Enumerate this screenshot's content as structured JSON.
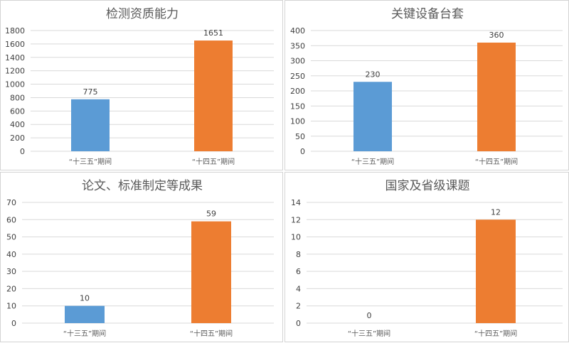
{
  "chart_data": [
    {
      "type": "bar",
      "title": "检测资质能力",
      "categories": [
        "“十三五”期间",
        "“十四五”期间"
      ],
      "values": [
        775,
        1651
      ],
      "ylim": [
        0,
        1800
      ],
      "yticks": [
        0,
        200,
        400,
        600,
        800,
        1000,
        1200,
        1400,
        1600,
        1800
      ],
      "colors": [
        "#5b9bd5",
        "#ed7d31"
      ],
      "grid": true
    },
    {
      "type": "bar",
      "title": "关键设备台套",
      "categories": [
        "“十三五”期间",
        "“十四五”期间"
      ],
      "values": [
        230,
        360
      ],
      "ylim": [
        0,
        400
      ],
      "yticks": [
        0,
        50,
        100,
        150,
        200,
        250,
        300,
        350,
        400
      ],
      "colors": [
        "#5b9bd5",
        "#ed7d31"
      ],
      "grid": true
    },
    {
      "type": "bar",
      "title": "论文、标准制定等成果",
      "categories": [
        "“十三五”期间",
        "“十四五”期间"
      ],
      "values": [
        10,
        59
      ],
      "ylim": [
        0,
        70
      ],
      "yticks": [
        0,
        10,
        20,
        30,
        40,
        50,
        60,
        70
      ],
      "colors": [
        "#5b9bd5",
        "#ed7d31"
      ],
      "grid": true
    },
    {
      "type": "bar",
      "title": "国家及省级课题",
      "categories": [
        "“十三五”期间",
        "“十四五”期间"
      ],
      "values": [
        0,
        12
      ],
      "ylim": [
        0,
        14
      ],
      "yticks": [
        0,
        2,
        4,
        6,
        8,
        10,
        12,
        14
      ],
      "colors": [
        "#5b9bd5",
        "#ed7d31"
      ],
      "grid": true
    }
  ]
}
